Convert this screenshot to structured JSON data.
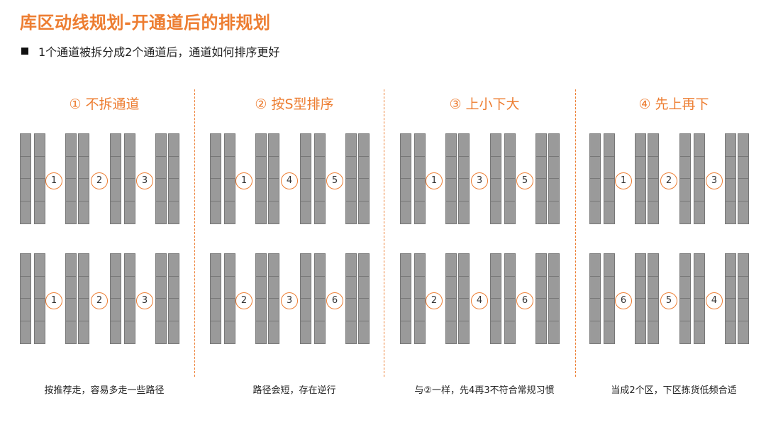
{
  "title": "库区动线规划-开通道后的排规划",
  "subtitle": "1个通道被拆分成2个通道后，通道如何排序更好",
  "colors": {
    "accent": "#ED7D31",
    "rack_fill": "#9a9a9a",
    "rack_border": "#777777"
  },
  "panels": [
    {
      "title": "① 不拆通道",
      "top_numbers": [
        "1",
        "2",
        "3"
      ],
      "bottom_numbers": [
        "1",
        "2",
        "3"
      ],
      "caption": "按推荐走，容易多走一些路径"
    },
    {
      "title": "② 按S型排序",
      "top_numbers": [
        "1",
        "4",
        "5"
      ],
      "bottom_numbers": [
        "2",
        "3",
        "6"
      ],
      "caption": "路径会短，存在逆行"
    },
    {
      "title": "③ 上小下大",
      "top_numbers": [
        "1",
        "3",
        "5"
      ],
      "bottom_numbers": [
        "2",
        "4",
        "6"
      ],
      "caption": "与②一样，先4再3不符合常规习惯"
    },
    {
      "title": "④ 先上再下",
      "top_numbers": [
        "1",
        "2",
        "3"
      ],
      "bottom_numbers": [
        "6",
        "5",
        "4"
      ],
      "caption": "当成2个区，下区拣货低频合适"
    }
  ]
}
